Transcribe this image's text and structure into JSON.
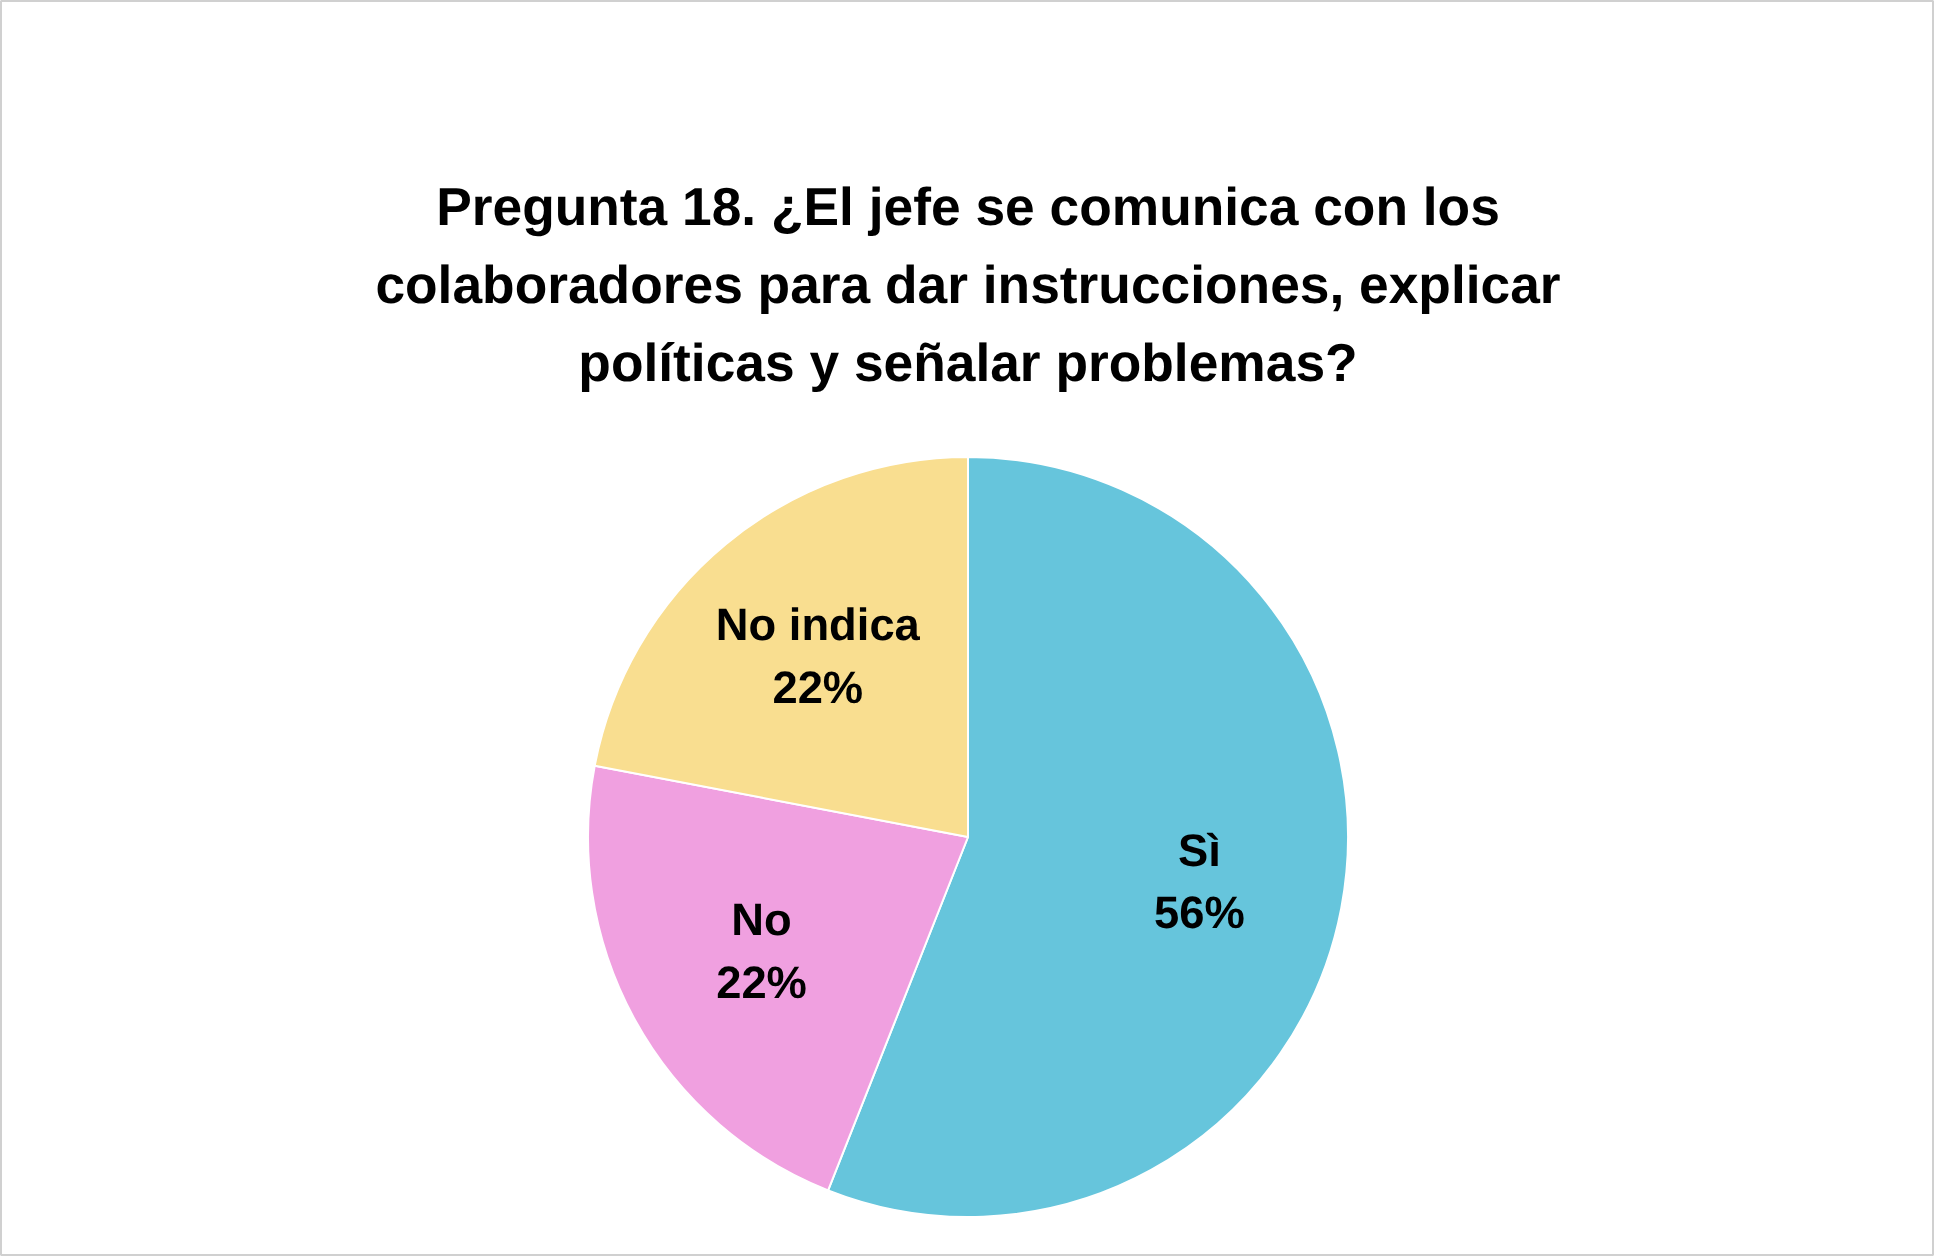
{
  "chart_data": {
    "type": "pie",
    "title": "Pregunta 18. ¿El jefe se comunica con los colaboradores para dar instrucciones, explicar políticas y señalar problemas?",
    "categories": [
      "Sì",
      "No",
      "No indica"
    ],
    "values": [
      56,
      22,
      22
    ],
    "value_labels": [
      "56%",
      "22%",
      "22%"
    ],
    "colors": [
      "#66c5dc",
      "#f0a0e0",
      "#f9de90"
    ]
  }
}
